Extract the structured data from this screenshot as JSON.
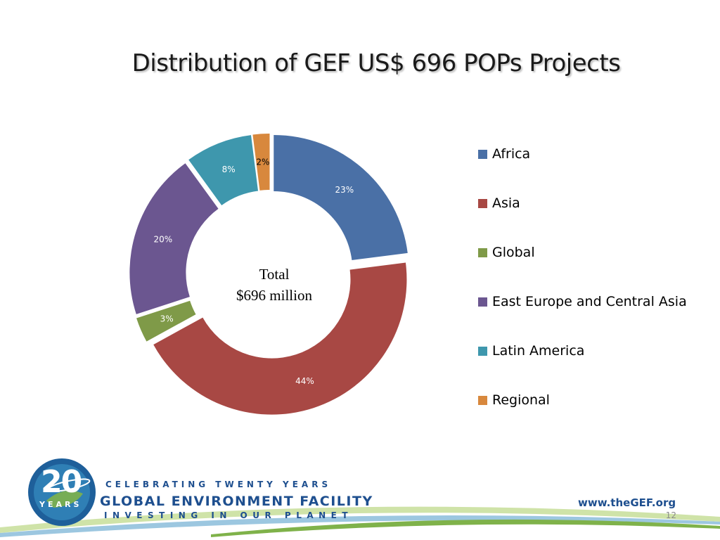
{
  "slide": {
    "title": "Distribution of GEF US$ 696 POPs Projects",
    "page_number": "12"
  },
  "chart_data": {
    "type": "pie",
    "title": "Distribution of GEF US$ 696 POPs Projects",
    "center_label_line1": "Total",
    "center_label_line2": "$696 million",
    "categories": [
      "Africa",
      "Asia",
      "Global",
      "East Europe and Central Asia",
      "Latin America",
      "Regional"
    ],
    "values": [
      23,
      44,
      3,
      20,
      8,
      2
    ],
    "value_labels": [
      "23%",
      "44%",
      "3%",
      "20%",
      "8%",
      "2%"
    ],
    "colors": [
      "#4a70a6",
      "#a84844",
      "#7f9a48",
      "#6b5690",
      "#3e97ad",
      "#d8883d"
    ],
    "style": "exploded doughnut",
    "legend_position": "right"
  },
  "legend": {
    "items": [
      {
        "label": "Africa",
        "color": "#4a70a6"
      },
      {
        "label": "Asia",
        "color": "#a84844"
      },
      {
        "label": "Global",
        "color": "#7f9a48"
      },
      {
        "label": "East Europe and Central Asia",
        "color": "#6b5690"
      },
      {
        "label": "Latin America",
        "color": "#3e97ad"
      },
      {
        "label": "Regional",
        "color": "#d8883d"
      }
    ]
  },
  "footer": {
    "badge_number": "20",
    "badge_sub": "YEARS",
    "line1": "CELEBRATING TWENTY YEARS",
    "line2": "GLOBAL ENVIRONMENT FACILITY",
    "line3": "INVESTING IN OUR PLANET",
    "website": "www.theGEF.org"
  }
}
